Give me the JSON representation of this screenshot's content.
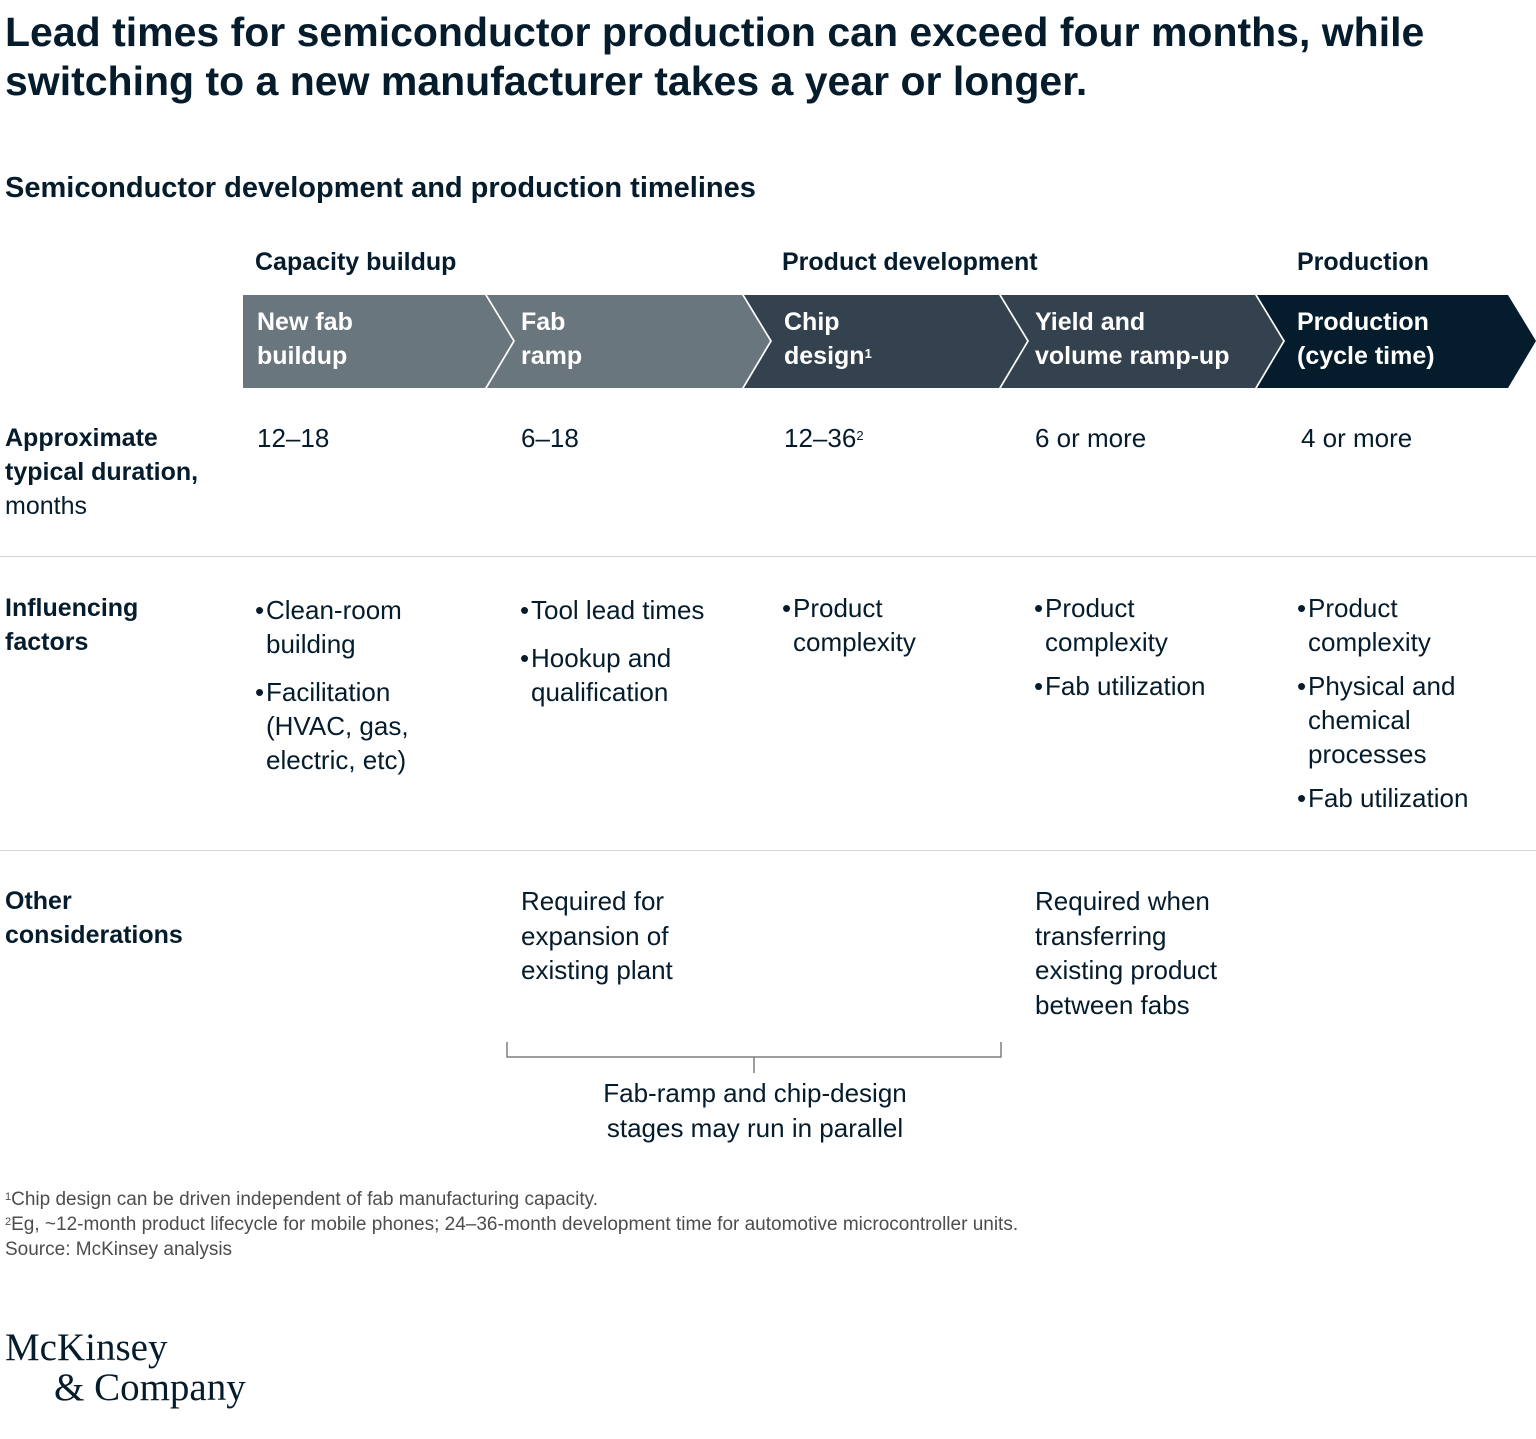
{
  "headline": "Lead times for semiconductor production can exceed four months, while switching to a new manufacturer takes a year or longer.",
  "subtitle": "Semiconductor development and production timelines",
  "phases": [
    {
      "label": "Capacity buildup"
    },
    {
      "label": "Product development"
    },
    {
      "label": "Production"
    }
  ],
  "stages": [
    {
      "line1": "New fab",
      "line2": "buildup",
      "sup": "",
      "duration": "12–18",
      "duration_sup": "",
      "color": "#6a767e"
    },
    {
      "line1": "Fab",
      "line2": "ramp",
      "sup": "",
      "duration": "6–18",
      "duration_sup": "",
      "color": "#6a767e"
    },
    {
      "line1": "Chip",
      "line2": "design",
      "sup": "1",
      "duration": "12–36",
      "duration_sup": "2",
      "color": "#34424f"
    },
    {
      "line1": "Yield and",
      "line2": "volume ramp-up",
      "sup": "",
      "duration": "6 or more",
      "duration_sup": "",
      "color": "#34424f"
    },
    {
      "line1": "Production",
      "line2": "(cycle time)",
      "sup": "",
      "duration": "4 or more",
      "duration_sup": "",
      "color": "#051c2c"
    }
  ],
  "rows": {
    "duration": {
      "label_bold_1": "Approximate",
      "label_bold_2": "typical duration,",
      "label_unit": "months"
    },
    "factors": {
      "label_1": "Influencing",
      "label_2": "factors"
    },
    "other": {
      "label_1": "Other",
      "label_2": "considerations"
    }
  },
  "factors": [
    [
      [
        "Clean-room",
        "building"
      ],
      [
        "Facilitation",
        "(HVAC, gas,",
        "electric, etc)"
      ]
    ],
    [
      [
        "Tool lead times"
      ],
      [
        "Hookup and",
        "qualification"
      ]
    ],
    [
      [
        "Product",
        "complexity"
      ]
    ],
    [
      [
        "Product",
        "complexity"
      ],
      [
        "Fab utilization"
      ]
    ],
    [
      [
        "Product",
        "complexity"
      ],
      [
        "Physical and",
        "chemical",
        "processes"
      ],
      [
        "Fab utilization"
      ]
    ]
  ],
  "other": {
    "fab_ramp": [
      "Required for",
      "expansion of",
      "existing plant"
    ],
    "yield_ramp": [
      "Required when",
      "transferring",
      "existing product",
      "between fabs"
    ]
  },
  "bracket_note": [
    "Fab-ramp and chip-design",
    "stages may run in parallel"
  ],
  "footnotes": [
    {
      "sup": "1",
      "text": "Chip design can be driven independent of fab manufacturing capacity."
    },
    {
      "sup": "2",
      "text": "Eg, ~12-month product lifecycle for mobile phones; 24–36-month development time for automotive microcontroller units."
    },
    {
      "sup": "",
      "text": "Source: McKinsey analysis"
    }
  ],
  "logo": {
    "line1": "McKinsey",
    "line2": "& Company"
  }
}
